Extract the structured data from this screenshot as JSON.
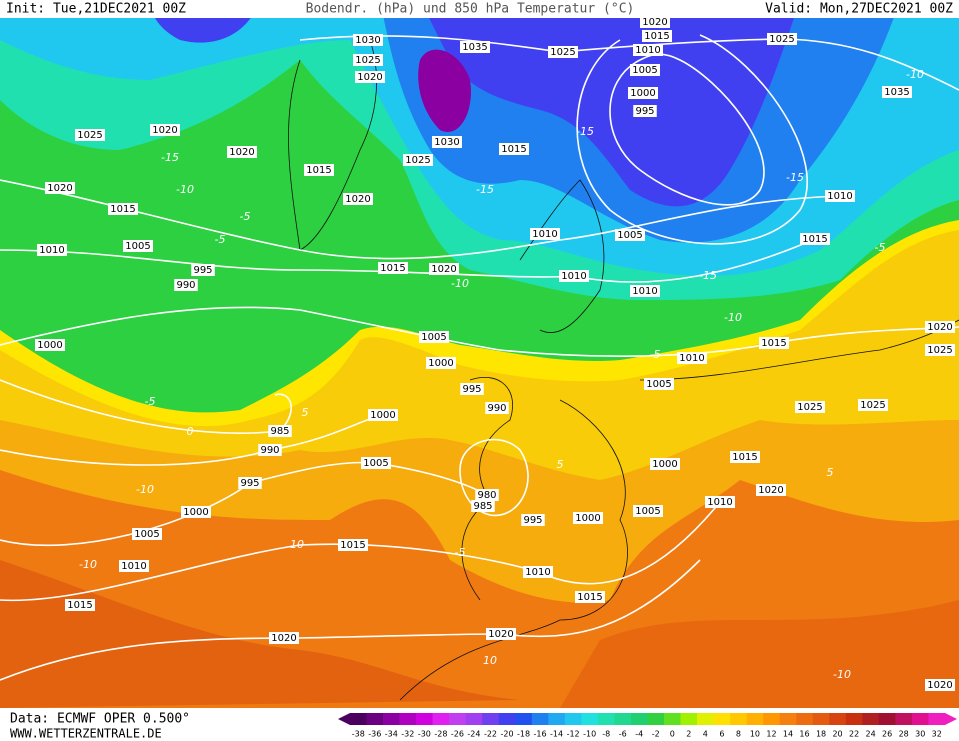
{
  "header": {
    "init": "Init: Tue,21DEC2021 00Z",
    "title": "Bodendr. (hPa) und 850 hPa Temperatur (°C)",
    "valid": "Valid: Mon,27DEC2021 00Z"
  },
  "footer": {
    "data": "Data: ECMWF OPER 0.500°",
    "site": "WWW.WETTERZENTRALE.DE"
  },
  "legend": {
    "labels": [
      "-38",
      "-36",
      "-34",
      "-32",
      "-30",
      "-28",
      "-26",
      "-24",
      "-22",
      "-20",
      "-18",
      "-16",
      "-14",
      "-12",
      "-10",
      "-8",
      "-6",
      "-4",
      "-2",
      "0",
      "2",
      "4",
      "6",
      "8",
      "10",
      "12",
      "14",
      "16",
      "18",
      "20",
      "22",
      "24",
      "26",
      "28",
      "30",
      "32"
    ],
    "colors": [
      "#4b0060",
      "#6a0080",
      "#8a00a0",
      "#b000c0",
      "#d000e0",
      "#e020f0",
      "#c040f0",
      "#a040f0",
      "#7040f0",
      "#4040f0",
      "#2050f0",
      "#2080f0",
      "#20a8f0",
      "#20c8f0",
      "#20e0e0",
      "#20e0b0",
      "#20d890",
      "#20d070",
      "#30d040",
      "#60e020",
      "#a0f000",
      "#e0f000",
      "#ffe000",
      "#ffc800",
      "#ffb000",
      "#ff9800",
      "#f58010",
      "#ee6c10",
      "#e35a10",
      "#d84410",
      "#c83010",
      "#b02020",
      "#a01030",
      "#c01060",
      "#e01090",
      "#f020c0"
    ]
  },
  "isobar_labels": [
    "1030",
    "1035",
    "1025",
    "1020",
    "1015",
    "1010",
    "1005",
    "1000",
    "995",
    "1025",
    "1035",
    "1025",
    "1020",
    "1020",
    "1020",
    "1025",
    "1030",
    "1015",
    "1025",
    "1015",
    "1020",
    "1015",
    "1020",
    "1010",
    "1010",
    "1005",
    "1015",
    "1010",
    "1005",
    "995",
    "990",
    "1015",
    "1020",
    "1010",
    "1010",
    "1000",
    "1005",
    "1000",
    "1010",
    "1015",
    "1020",
    "1025",
    "995",
    "990",
    "1005",
    "1025",
    "1025",
    "985",
    "1000",
    "990",
    "1005",
    "1000",
    "1015",
    "995",
    "980",
    "985",
    "995",
    "1000",
    "1005",
    "1010",
    "1020",
    "1000",
    "1005",
    "1015",
    "1010",
    "1010",
    "1015",
    "1015",
    "1020",
    "1020",
    "1020"
  ],
  "isotherm_labels": [
    "-10",
    "-15",
    "-10",
    "-15",
    "-15",
    "-15",
    "-5",
    "-5",
    "-10",
    "-15",
    "-10",
    "-5",
    "-5",
    "-5",
    "0",
    "5",
    "-10",
    "-10",
    "10",
    "-5",
    "5",
    "10",
    "5",
    "-10"
  ]
}
